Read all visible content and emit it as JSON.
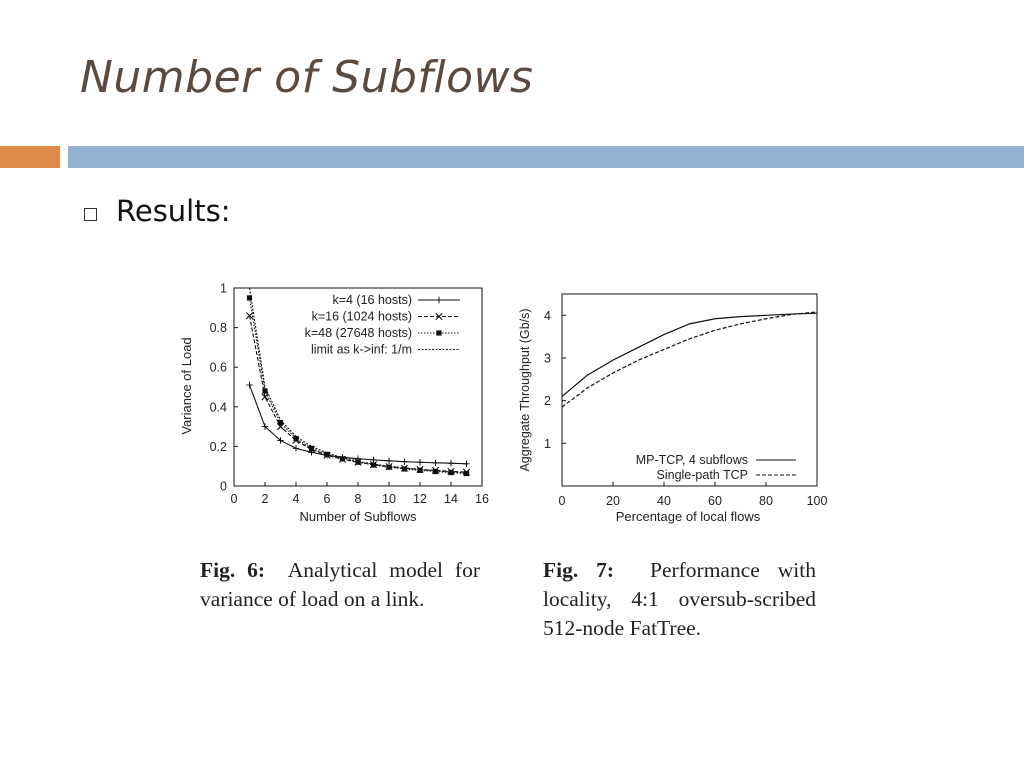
{
  "slide": {
    "title": "Number of Subflows",
    "bullet_text": "Results:",
    "accent_colors": {
      "orange": "#e08a4a",
      "blue": "#95b3d0",
      "title": "#5b4a3f"
    }
  },
  "captions": {
    "fig6_label": "Fig. 6:",
    "fig6_text": "Analytical model for variance of load on a link.",
    "fig7_label": "Fig. 7:",
    "fig7_text": "Performance with locality, 4:1 oversub-scribed 512-node FatTree."
  },
  "chart_data": [
    {
      "type": "line",
      "xlabel": "Number of Subflows",
      "ylabel": "Variance of Load",
      "xlim": [
        0,
        16
      ],
      "ylim": [
        0,
        1
      ],
      "xticks": [
        0,
        2,
        4,
        6,
        8,
        10,
        12,
        14,
        16
      ],
      "yticks": [
        0,
        0.2,
        0.4,
        0.6,
        0.8,
        1
      ],
      "ytick_labels": [
        "0",
        "0.2",
        "0.4",
        "0.6",
        "0.8",
        "1"
      ],
      "legend_position": "top-right",
      "x": [
        1,
        2,
        3,
        4,
        5,
        6,
        7,
        8,
        9,
        10,
        11,
        12,
        13,
        14,
        15
      ],
      "series": [
        {
          "name": "k=4 (16 hosts)",
          "marker": "+",
          "dash": "solid",
          "values": [
            0.51,
            0.3,
            0.23,
            0.19,
            0.17,
            0.155,
            0.145,
            0.138,
            0.132,
            0.127,
            0.123,
            0.12,
            0.117,
            0.115,
            0.112
          ]
        },
        {
          "name": "k=16 (1024 hosts)",
          "marker": "x",
          "dash": "dashed",
          "values": [
            0.86,
            0.45,
            0.3,
            0.23,
            0.185,
            0.155,
            0.135,
            0.12,
            0.108,
            0.098,
            0.09,
            0.084,
            0.079,
            0.074,
            0.07
          ]
        },
        {
          "name": "k=48 (27648 hosts)",
          "marker": "*",
          "dash": "dotted",
          "values": [
            0.95,
            0.48,
            0.32,
            0.24,
            0.19,
            0.16,
            0.137,
            0.12,
            0.106,
            0.095,
            0.086,
            0.079,
            0.073,
            0.068,
            0.063
          ]
        },
        {
          "name": "limit as k->inf:  1/m",
          "marker": "none",
          "dash": "fine-dotted",
          "values": [
            1.0,
            0.5,
            0.333,
            0.25,
            0.2,
            0.167,
            0.143,
            0.125,
            0.111,
            0.1,
            0.091,
            0.083,
            0.077,
            0.071,
            0.067
          ]
        }
      ]
    },
    {
      "type": "line",
      "xlabel": "Percentage of local flows",
      "ylabel": "Aggregate Throughput (Gb/s)",
      "xlim": [
        0,
        100
      ],
      "ylim": [
        0,
        4.5
      ],
      "xticks": [
        0,
        20,
        40,
        60,
        80,
        100
      ],
      "yticks": [
        1,
        2,
        3,
        4
      ],
      "legend_position": "bottom-right",
      "series": [
        {
          "name": "MP-TCP, 4 subflows",
          "dash": "solid",
          "x": [
            0,
            10,
            20,
            30,
            40,
            50,
            60,
            70,
            80,
            90,
            100
          ],
          "values": [
            2.1,
            2.6,
            2.95,
            3.25,
            3.55,
            3.8,
            3.92,
            3.97,
            4.0,
            4.03,
            4.05
          ]
        },
        {
          "name": "Single-path TCP",
          "dash": "dashed",
          "x": [
            0,
            10,
            20,
            30,
            40,
            50,
            60,
            70,
            80,
            90,
            100
          ],
          "values": [
            1.85,
            2.3,
            2.65,
            2.95,
            3.2,
            3.45,
            3.65,
            3.8,
            3.92,
            4.02,
            4.08
          ]
        }
      ]
    }
  ]
}
